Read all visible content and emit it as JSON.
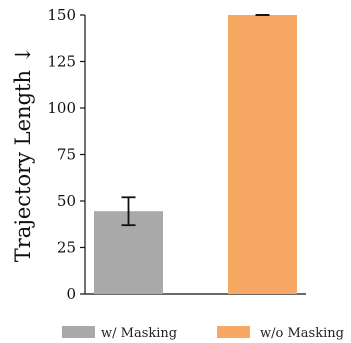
{
  "chart_data": {
    "type": "bar",
    "title": "",
    "xlabel": "",
    "ylabel": "Trajectory Length ↓",
    "ylim": [
      0,
      150
    ],
    "yticks": [
      0,
      25,
      50,
      75,
      100,
      125,
      150
    ],
    "grid": false,
    "legend_position": "bottom",
    "series": [
      {
        "name": "w/ Masking",
        "value": 44.5,
        "error_low": 37,
        "error_high": 52,
        "color": "#a9a9a9"
      },
      {
        "name": "w/o Masking",
        "value": 150,
        "error_low": 150,
        "error_high": 150,
        "color": "#f7a862"
      }
    ]
  }
}
